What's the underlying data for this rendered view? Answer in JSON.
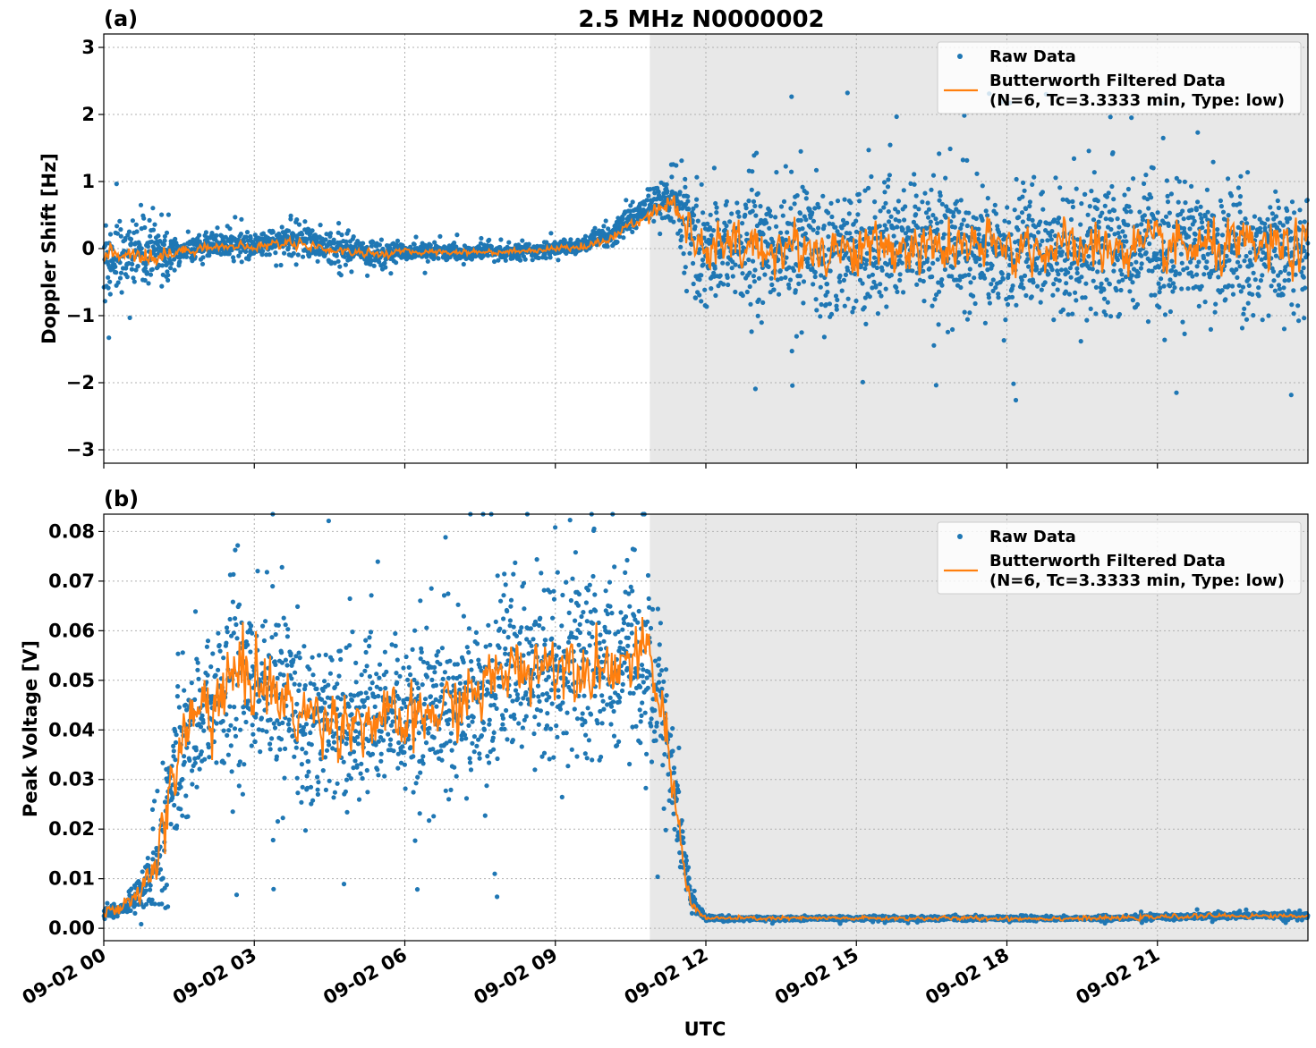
{
  "figure": {
    "title": "2.5 MHz N0000002",
    "xlabel": "UTC"
  },
  "colors": {
    "raw": "#1f77b4",
    "filtered": "#ff7f0e",
    "shade": "#e8e8e8"
  },
  "chart_data": [
    {
      "type": "scatter",
      "panel_label": "(a)",
      "title": "2.5 MHz N0000002",
      "xlabel": "",
      "ylabel": "Doppler Shift [Hz]",
      "xlim": [
        "09-02 00:00",
        "09-03 00:00"
      ],
      "ylim": [
        -3.2,
        3.2
      ],
      "x_ticks": [
        "09-02 00",
        "09-02 03",
        "09-02 06",
        "09-02 09",
        "09-02 12",
        "09-02 15",
        "09-02 18",
        "09-02 21"
      ],
      "y_ticks": [
        -3,
        -2,
        -1,
        0,
        1,
        2,
        3
      ],
      "y_tick_labels": [
        "−3",
        "−2",
        "−1",
        "0",
        "1",
        "2",
        "3"
      ],
      "grid": true,
      "legend_position": "top-right",
      "shaded_region": [
        "09-02 10:53",
        "09-03 00:00"
      ],
      "series": [
        {
          "name": "Raw Data",
          "kind": "points",
          "x_hours": [
            0,
            0.5,
            1,
            1.5,
            2,
            3,
            3.8,
            4.5,
            5.5,
            6,
            7,
            8,
            9,
            9.5,
            10,
            10.5,
            11,
            11.4,
            11.6,
            11.8,
            12,
            13,
            14,
            15,
            16,
            17,
            18,
            19,
            20,
            21,
            22,
            23,
            24
          ],
          "center": [
            -0.15,
            -0.05,
            -0.1,
            -0.05,
            0.05,
            0.05,
            0.15,
            0.0,
            -0.1,
            -0.05,
            -0.05,
            -0.05,
            0.0,
            0.05,
            0.15,
            0.45,
            0.7,
            0.75,
            0.4,
            -0.05,
            0.0,
            0.0,
            0.0,
            0.0,
            0.0,
            0.0,
            0.0,
            0.0,
            0.0,
            0.0,
            0.0,
            0.0,
            0.0
          ],
          "spread": [
            0.75,
            0.35,
            0.45,
            0.15,
            0.15,
            0.15,
            0.22,
            0.2,
            0.2,
            0.12,
            0.1,
            0.1,
            0.1,
            0.12,
            0.14,
            0.2,
            0.25,
            0.35,
            0.7,
            0.85,
            0.85,
            0.85,
            0.85,
            0.85,
            0.85,
            0.85,
            0.85,
            0.85,
            0.85,
            0.85,
            0.85,
            0.85,
            0.85
          ]
        },
        {
          "name": "Butterworth Filtered Data\n(N=6, Tc=3.3333 min, Type: low)",
          "kind": "line",
          "x_hours": [
            0,
            0.5,
            1,
            1.5,
            2,
            3,
            3.8,
            4.5,
            5.5,
            6,
            7,
            8,
            9,
            9.5,
            10,
            10.5,
            11,
            11.4,
            11.6,
            11.8,
            12,
            13,
            14,
            15,
            16,
            17,
            18,
            19,
            20,
            21,
            22,
            23,
            24
          ],
          "y": [
            -0.1,
            -0.05,
            -0.12,
            -0.05,
            0.03,
            0.02,
            0.1,
            -0.02,
            -0.08,
            -0.05,
            -0.05,
            -0.05,
            0.0,
            0.03,
            0.1,
            0.35,
            0.6,
            0.7,
            0.35,
            0.0,
            0.0,
            0.0,
            0.0,
            0.0,
            0.0,
            0.0,
            0.0,
            0.0,
            0.0,
            0.0,
            0.0,
            0.0,
            0.0
          ],
          "noise": [
            0.08,
            0.06,
            0.08,
            0.04,
            0.03,
            0.03,
            0.04,
            0.03,
            0.03,
            0.02,
            0.02,
            0.02,
            0.02,
            0.03,
            0.03,
            0.05,
            0.06,
            0.08,
            0.15,
            0.18,
            0.18,
            0.18,
            0.18,
            0.18,
            0.18,
            0.18,
            0.18,
            0.18,
            0.18,
            0.18,
            0.18,
            0.18,
            0.18
          ]
        }
      ]
    },
    {
      "type": "scatter",
      "panel_label": "(b)",
      "title": "",
      "xlabel": "UTC",
      "ylabel": "Peak Voltage [V]",
      "xlim": [
        "09-02 00:00",
        "09-03 00:00"
      ],
      "ylim": [
        -0.0025,
        0.0835
      ],
      "x_ticks": [
        "09-02 00",
        "09-02 03",
        "09-02 06",
        "09-02 09",
        "09-02 12",
        "09-02 15",
        "09-02 18",
        "09-02 21"
      ],
      "y_ticks": [
        0.0,
        0.01,
        0.02,
        0.03,
        0.04,
        0.05,
        0.06,
        0.07,
        0.08
      ],
      "y_tick_labels": [
        "0.00",
        "0.01",
        "0.02",
        "0.03",
        "0.04",
        "0.05",
        "0.06",
        "0.07",
        "0.08"
      ],
      "grid": true,
      "legend_position": "top-right",
      "shaded_region": [
        "09-02 10:53",
        "09-03 00:00"
      ],
      "series": [
        {
          "name": "Raw Data",
          "kind": "points",
          "x_hours": [
            0,
            0.4,
            0.8,
            1.2,
            1.5,
            2,
            2.5,
            3,
            3.5,
            4,
            5,
            6,
            7,
            7.5,
            8,
            9,
            10,
            10.8,
            11.1,
            11.4,
            11.7,
            12,
            13,
            16,
            20,
            22,
            24
          ],
          "center": [
            0.003,
            0.004,
            0.008,
            0.018,
            0.036,
            0.044,
            0.048,
            0.05,
            0.046,
            0.043,
            0.042,
            0.041,
            0.045,
            0.048,
            0.052,
            0.054,
            0.053,
            0.054,
            0.045,
            0.025,
            0.006,
            0.002,
            0.002,
            0.002,
            0.002,
            0.0025,
            0.0025
          ],
          "spread": [
            0.001,
            0.0015,
            0.004,
            0.012,
            0.016,
            0.016,
            0.017,
            0.017,
            0.016,
            0.015,
            0.014,
            0.014,
            0.015,
            0.016,
            0.017,
            0.017,
            0.016,
            0.016,
            0.014,
            0.009,
            0.002,
            0.0005,
            0.0004,
            0.0004,
            0.0004,
            0.0005,
            0.0006
          ]
        },
        {
          "name": "Butterworth Filtered Data\n(N=6, Tc=3.3333 min, Type: low)",
          "kind": "line",
          "x_hours": [
            0,
            0.4,
            0.8,
            1.2,
            1.5,
            2,
            2.5,
            3,
            3.5,
            4,
            5,
            6,
            7,
            7.5,
            8,
            9,
            10,
            10.8,
            11.1,
            11.4,
            11.7,
            12,
            13,
            16,
            20,
            22,
            24
          ],
          "y": [
            0.003,
            0.004,
            0.008,
            0.019,
            0.037,
            0.045,
            0.049,
            0.052,
            0.046,
            0.043,
            0.042,
            0.041,
            0.045,
            0.048,
            0.052,
            0.054,
            0.053,
            0.055,
            0.046,
            0.024,
            0.005,
            0.002,
            0.002,
            0.002,
            0.002,
            0.0025,
            0.0025
          ],
          "noise": [
            0.0005,
            0.0007,
            0.0015,
            0.003,
            0.004,
            0.004,
            0.005,
            0.004,
            0.003,
            0.003,
            0.003,
            0.003,
            0.003,
            0.003,
            0.003,
            0.003,
            0.003,
            0.003,
            0.003,
            0.002,
            0.0005,
            0.0002,
            0.0002,
            0.0002,
            0.0002,
            0.0002,
            0.0002
          ]
        }
      ]
    }
  ]
}
